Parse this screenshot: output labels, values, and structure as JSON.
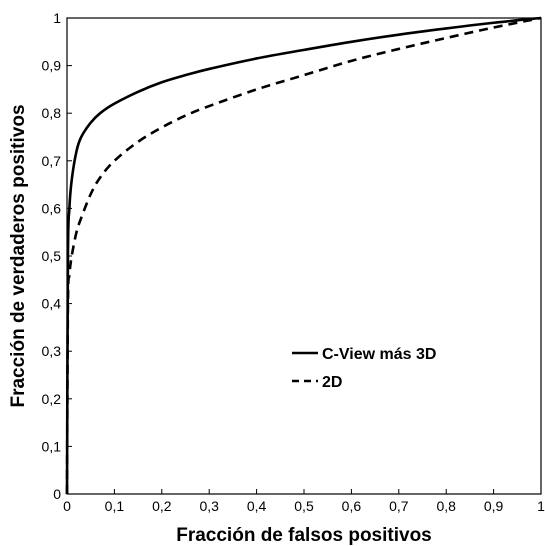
{
  "chart_data": {
    "type": "line",
    "xlabel": "Fracción de falsos positivos",
    "ylabel": "Fracción de verdaderos positivos",
    "xlim": [
      0,
      1
    ],
    "ylim": [
      0,
      1
    ],
    "x_ticks": [
      "0",
      "0,1",
      "0,2",
      "0,3",
      "0,4",
      "0,5",
      "0,6",
      "0,7",
      "0,8",
      "0,9",
      "1"
    ],
    "y_ticks": [
      "0",
      "0,1",
      "0,2",
      "0,3",
      "0,4",
      "0,5",
      "0,6",
      "0,7",
      "0,8",
      "0,9",
      "1"
    ],
    "grid": false,
    "legend_position": "center-right",
    "series": [
      {
        "name": "C-View más 3D",
        "style": "solid",
        "color": "#000000",
        "x": [
          0,
          0.002,
          0.005,
          0.01,
          0.02,
          0.03,
          0.05,
          0.07,
          0.1,
          0.15,
          0.2,
          0.25,
          0.3,
          0.4,
          0.5,
          0.6,
          0.7,
          0.8,
          0.9,
          1.0
        ],
        "y": [
          0,
          0.5,
          0.6,
          0.66,
          0.72,
          0.75,
          0.78,
          0.8,
          0.82,
          0.845,
          0.865,
          0.88,
          0.893,
          0.915,
          0.933,
          0.95,
          0.965,
          0.978,
          0.99,
          1.0
        ]
      },
      {
        "name": "2D",
        "style": "dashed",
        "color": "#000000",
        "x": [
          0,
          0.002,
          0.005,
          0.01,
          0.02,
          0.03,
          0.05,
          0.07,
          0.1,
          0.15,
          0.2,
          0.25,
          0.3,
          0.4,
          0.5,
          0.6,
          0.7,
          0.8,
          0.9,
          1.0
        ],
        "y": [
          0,
          0.4,
          0.46,
          0.5,
          0.55,
          0.58,
          0.63,
          0.665,
          0.7,
          0.74,
          0.77,
          0.795,
          0.815,
          0.85,
          0.88,
          0.91,
          0.935,
          0.958,
          0.98,
          1.0
        ]
      }
    ]
  }
}
